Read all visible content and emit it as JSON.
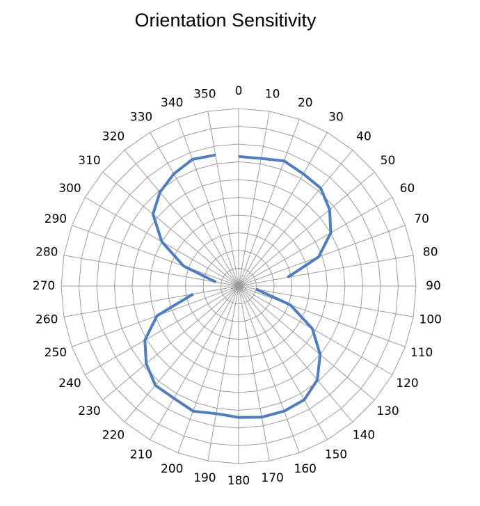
{
  "chart_data": {
    "type": "line",
    "subtype": "polar",
    "title": "Orientation Sensitivity",
    "angle_ticks": [
      "0",
      "10",
      "20",
      "30",
      "40",
      "50",
      "60",
      "70",
      "80",
      "90",
      "100",
      "110",
      "120",
      "130",
      "140",
      "150",
      "160",
      "170",
      "180",
      "190",
      "200",
      "210",
      "220",
      "230",
      "240",
      "250",
      "260",
      "270",
      "280",
      "290",
      "300",
      "310",
      "320",
      "330",
      "340",
      "350"
    ],
    "r_range": [
      0,
      10
    ],
    "r_rings": 10,
    "grid": true,
    "legend": "none",
    "series": [
      {
        "color": "#4f7dbf",
        "angles": [
          0,
          10,
          20,
          30,
          40,
          50,
          60,
          70,
          80,
          90,
          100,
          110,
          120,
          130,
          140,
          150,
          160,
          170,
          180,
          190,
          200,
          210,
          220,
          230,
          240,
          250,
          260,
          270,
          280,
          290,
          300,
          310,
          320,
          330,
          340,
          350
        ],
        "values": [
          7.3,
          7.3,
          7.5,
          7.3,
          7.2,
          6.7,
          6.0,
          4.8,
          2.8,
          null,
          1.0,
          3.1,
          4.8,
          6.0,
          6.9,
          7.4,
          7.5,
          7.5,
          7.4,
          7.3,
          7.5,
          7.3,
          7.3,
          6.8,
          6.1,
          4.9,
          2.6,
          null,
          1.3,
          3.3,
          5.0,
          6.3,
          6.9,
          7.3,
          7.6,
          7.5
        ]
      }
    ]
  }
}
